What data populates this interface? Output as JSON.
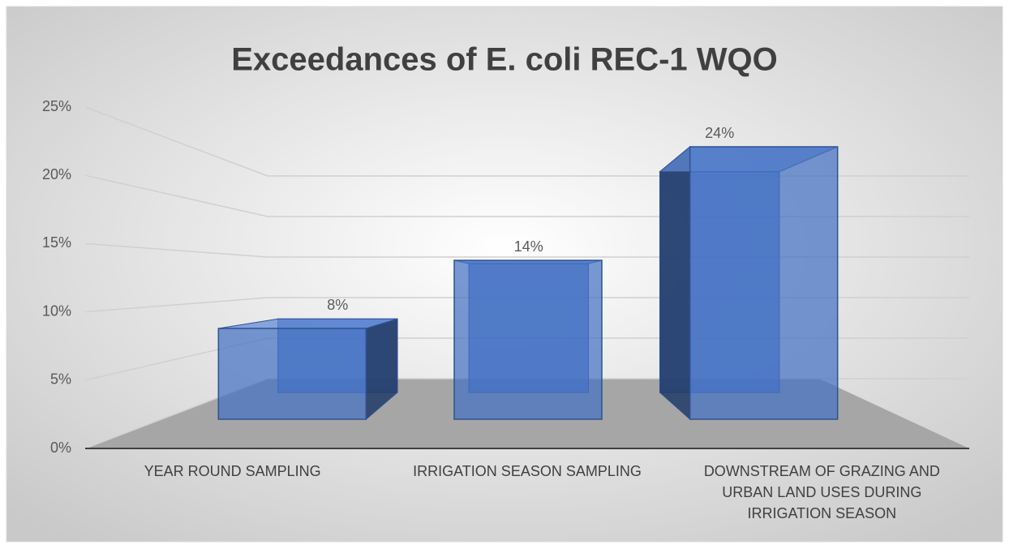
{
  "chart_data": {
    "type": "bar3d",
    "title": "Exceedances of E. coli REC-1 WQO",
    "categories": [
      "YEAR ROUND SAMPLING",
      "IRRIGATION SEASON SAMPLING",
      "DOWNSTREAM OF GRAZING AND URBAN LAND USES DURING IRRIGATION SEASON"
    ],
    "values": [
      8,
      14,
      24
    ],
    "value_labels": [
      "8%",
      "14%",
      "24%"
    ],
    "color": "#4472c4",
    "ylim": [
      0,
      25
    ],
    "yticks": [
      {
        "value": 0,
        "label": "0%"
      },
      {
        "value": 5,
        "label": "5%"
      },
      {
        "value": 10,
        "label": "10%"
      },
      {
        "value": 15,
        "label": "15%"
      },
      {
        "value": 20,
        "label": "20%"
      },
      {
        "value": 25,
        "label": "25%"
      }
    ],
    "grid": true
  }
}
